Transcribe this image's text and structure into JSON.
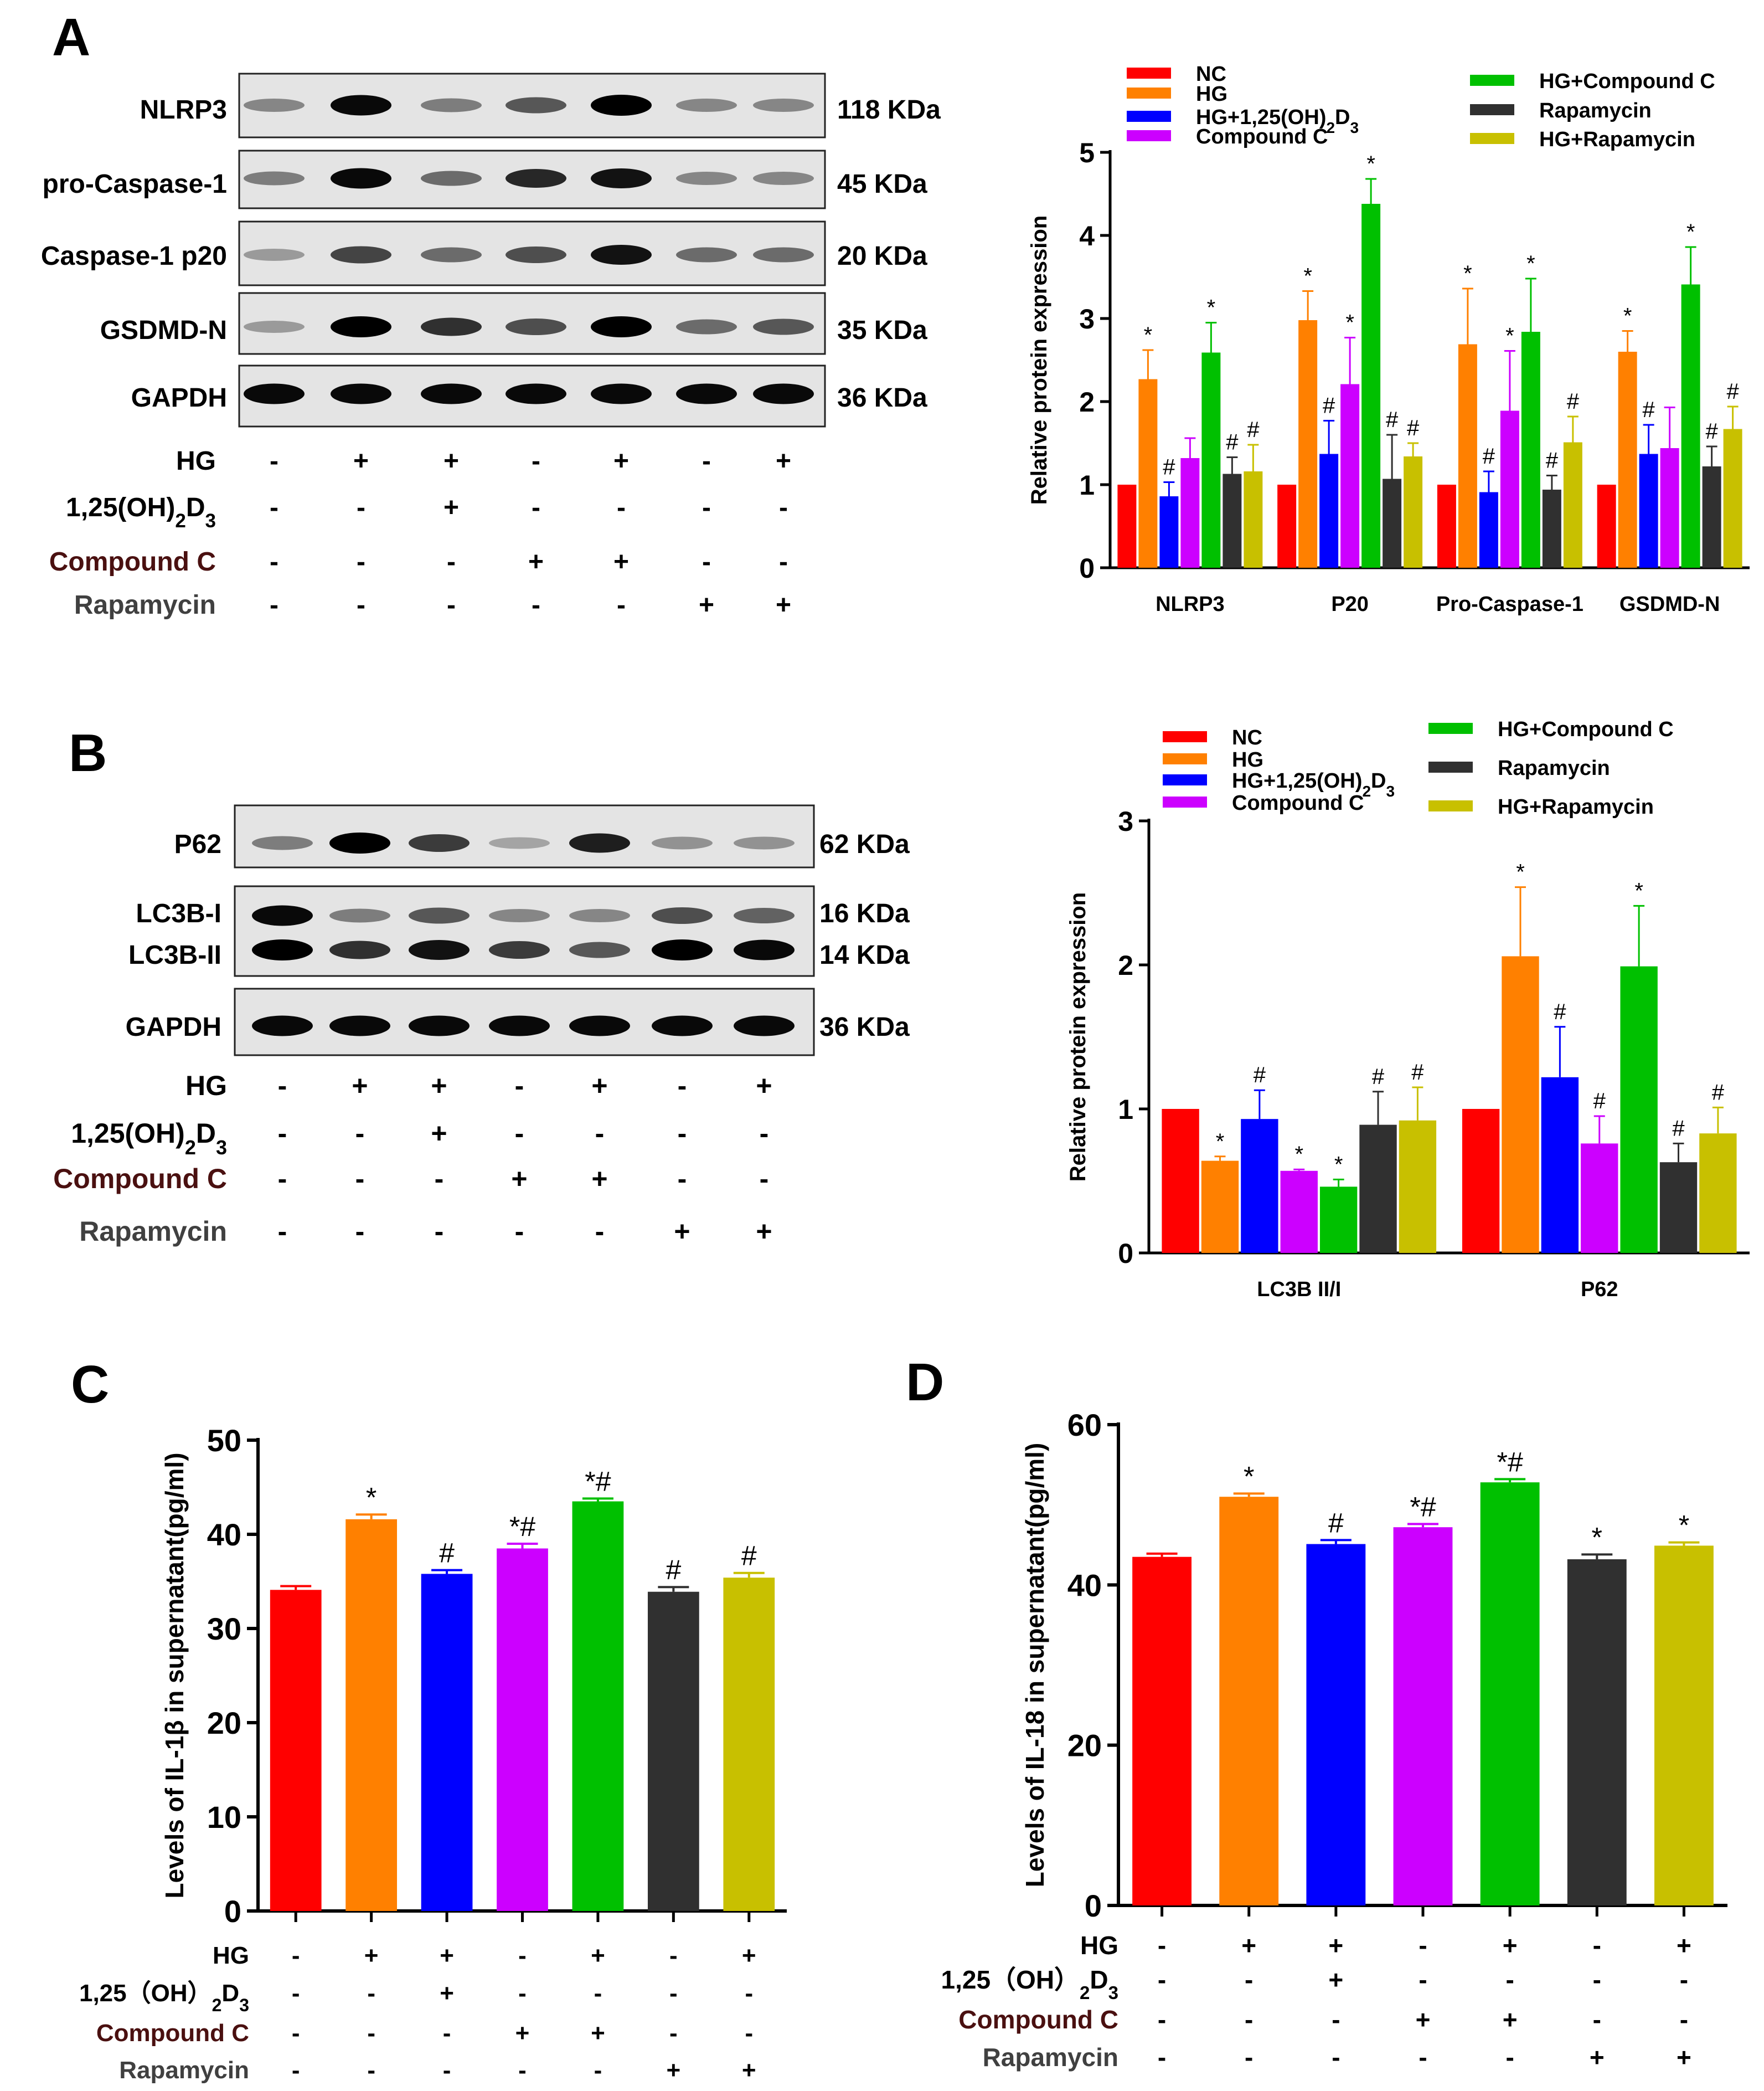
{
  "colors": {
    "NC": "#ff0000",
    "HG": "#ff8000",
    "HG+1,25(OH)2D3": "#0000ff",
    "Compound C": "#cc00ff",
    "HG+Compound C": "#00c000",
    "Rapamycin": "#303030",
    "HG+Rapamycin": "#c8c000",
    "treatmentCompoundC": "#4a1010",
    "treatmentRapamycin": "#404040"
  },
  "treatment_rows": {
    "HG": [
      "-",
      "+",
      "+",
      "-",
      "+",
      "-",
      "+"
    ],
    "VD3": [
      "-",
      "-",
      "+",
      "-",
      "-",
      "-",
      "-"
    ],
    "CompoundC": [
      "-",
      "-",
      "-",
      "+",
      "+",
      "-",
      "-"
    ],
    "Rapamycin": [
      "-",
      "-",
      "-",
      "-",
      "-",
      "+",
      "+"
    ]
  },
  "labels": {
    "HG": "HG",
    "VD3_prefix": "1,25(OH)",
    "VD3_sub": "2",
    "VD3_D": "D",
    "VD3_sub3": "3",
    "VD3_prefix_wide": "1,25（OH）",
    "VD3_D_wide": "D",
    "CompoundC": "Compound C",
    "Rapamycin": "Rapamycin"
  },
  "panelA": {
    "letter": "A",
    "blot_rows": [
      {
        "protein": "NLRP3",
        "size": "118 KDa",
        "intensities": [
          0.3,
          0.95,
          0.35,
          0.55,
          1.0,
          0.3,
          0.3
        ]
      },
      {
        "protein": "pro-Caspase-1",
        "size": "45 KDa",
        "intensities": [
          0.35,
          0.95,
          0.45,
          0.8,
          0.9,
          0.3,
          0.3
        ]
      },
      {
        "protein": "Caspase-1 p20",
        "size": "20 KDa",
        "intensities": [
          0.2,
          0.65,
          0.45,
          0.6,
          0.9,
          0.45,
          0.45
        ]
      },
      {
        "protein": "GSDMD-N",
        "size": "35 KDa",
        "intensities": [
          0.2,
          1.0,
          0.75,
          0.6,
          1.0,
          0.45,
          0.55
        ]
      },
      {
        "protein": "GAPDH",
        "size": "36 KDa",
        "intensities": [
          0.95,
          0.95,
          0.95,
          0.95,
          0.95,
          0.95,
          0.95
        ]
      }
    ]
  },
  "panelB": {
    "letter": "B",
    "blot_rows": [
      {
        "protein": "P62",
        "size": "62 KDa",
        "intensities": [
          0.35,
          1.0,
          0.7,
          0.15,
          0.85,
          0.25,
          0.25
        ]
      },
      {
        "protein": "LC3B-I",
        "size": "16 KDa",
        "intensities": [
          0.95,
          0.35,
          0.55,
          0.3,
          0.3,
          0.6,
          0.5
        ]
      },
      {
        "protein": "LC3B-II",
        "size": "14 KDa",
        "intensities": [
          1.0,
          0.75,
          0.9,
          0.7,
          0.55,
          1.0,
          0.95
        ]
      },
      {
        "protein": "GAPDH",
        "size": "36 KDa",
        "intensities": [
          0.95,
          0.95,
          0.95,
          0.95,
          0.95,
          0.95,
          0.95
        ]
      }
    ]
  },
  "panelC": {
    "letter": "C"
  },
  "panelD": {
    "letter": "D"
  },
  "chart_data": [
    {
      "id": "A",
      "type": "bar",
      "ylabel": "Relative protein expression",
      "ylim": [
        0,
        5
      ],
      "yticks": [
        0,
        1,
        2,
        3,
        4,
        5
      ],
      "categories": [
        "NLRP3",
        "P20",
        "Pro-Caspase-1",
        "GSDMD-N"
      ],
      "legend": [
        "NC",
        "HG",
        "HG+1,25(OH)2D3",
        "Compound C",
        "HG+Compound C",
        "Rapamycin",
        "HG+Rapamycin"
      ],
      "series": [
        {
          "name": "NC",
          "values": [
            1,
            1,
            1,
            1
          ],
          "errors": [
            0,
            0,
            0,
            0
          ],
          "marks": [
            "",
            "",
            "",
            ""
          ]
        },
        {
          "name": "HG",
          "values": [
            2.27,
            2.98,
            2.69,
            2.6
          ],
          "errors": [
            0.35,
            0.35,
            0.67,
            0.25
          ],
          "marks": [
            "*",
            "*",
            "*",
            "*"
          ]
        },
        {
          "name": "HG+1,25(OH)2D3",
          "values": [
            0.86,
            1.37,
            0.91,
            1.37
          ],
          "errors": [
            0.17,
            0.4,
            0.25,
            0.35
          ],
          "marks": [
            "#",
            "#",
            "#",
            "#"
          ]
        },
        {
          "name": "Compound C",
          "values": [
            1.32,
            2.21,
            1.89,
            1.44
          ],
          "errors": [
            0.24,
            0.56,
            0.72,
            0.49
          ],
          "marks": [
            "",
            "*",
            "*",
            ""
          ]
        },
        {
          "name": "HG+Compound C",
          "values": [
            2.59,
            4.38,
            2.84,
            3.41
          ],
          "errors": [
            0.36,
            0.3,
            0.64,
            0.45
          ],
          "marks": [
            "*",
            "*",
            "*",
            "*"
          ]
        },
        {
          "name": "Rapamycin",
          "values": [
            1.13,
            1.07,
            0.94,
            1.22
          ],
          "errors": [
            0.2,
            0.53,
            0.17,
            0.24
          ],
          "marks": [
            "#",
            "#",
            "#",
            "#"
          ]
        },
        {
          "name": "HG+Rapamycin",
          "values": [
            1.16,
            1.34,
            1.51,
            1.67
          ],
          "errors": [
            0.32,
            0.16,
            0.31,
            0.27
          ],
          "marks": [
            "#",
            "#",
            "#",
            "#"
          ]
        }
      ]
    },
    {
      "id": "B",
      "type": "bar",
      "ylabel": "Relative protein expression",
      "ylim": [
        0,
        3
      ],
      "yticks": [
        0,
        1,
        2,
        3
      ],
      "categories": [
        "LC3B II/I",
        "P62"
      ],
      "legend": [
        "NC",
        "HG",
        "HG+1,25(OH)2D3",
        "Compound C",
        "HG+Compound C",
        "Rapamycin",
        "HG+Rapamycin"
      ],
      "series": [
        {
          "name": "NC",
          "values": [
            1,
            1
          ],
          "errors": [
            0,
            0
          ],
          "marks": [
            "",
            ""
          ]
        },
        {
          "name": "HG",
          "values": [
            0.64,
            2.06
          ],
          "errors": [
            0.03,
            0.48
          ],
          "marks": [
            "*",
            "*"
          ]
        },
        {
          "name": "HG+1,25(OH)2D3",
          "values": [
            0.93,
            1.22
          ],
          "errors": [
            0.2,
            0.35
          ],
          "marks": [
            "#",
            "#"
          ]
        },
        {
          "name": "Compound C",
          "values": [
            0.57,
            0.76
          ],
          "errors": [
            0.01,
            0.19
          ],
          "marks": [
            "*",
            "#"
          ]
        },
        {
          "name": "HG+Compound C",
          "values": [
            0.46,
            1.99
          ],
          "errors": [
            0.05,
            0.42
          ],
          "marks": [
            "*",
            "*"
          ]
        },
        {
          "name": "Rapamycin",
          "values": [
            0.89,
            0.63
          ],
          "errors": [
            0.23,
            0.13
          ],
          "marks": [
            "#",
            "#"
          ]
        },
        {
          "name": "HG+Rapamycin",
          "values": [
            0.92,
            0.83
          ],
          "errors": [
            0.23,
            0.18
          ],
          "marks": [
            "#",
            "#"
          ]
        }
      ]
    },
    {
      "id": "C",
      "type": "bar",
      "ylabel": "Levels of IL-1β in supernatant(pg/ml)",
      "ylim": [
        0,
        50
      ],
      "yticks": [
        0,
        10,
        20,
        30,
        40,
        50
      ],
      "categories": [
        "NC",
        "HG",
        "HG+1,25(OH)2D3",
        "Compound C",
        "HG+Compound C",
        "Rapamycin",
        "HG+Rapamycin"
      ],
      "values": [
        34.1,
        41.6,
        35.8,
        38.5,
        43.5,
        33.9,
        35.4
      ],
      "errors": [
        0.4,
        0.5,
        0.4,
        0.5,
        0.3,
        0.5,
        0.5
      ],
      "marks": [
        "",
        "*",
        "#",
        "*#",
        "*#",
        "#",
        "#"
      ]
    },
    {
      "id": "D",
      "type": "bar",
      "ylabel": "Levels of IL-18 in supernatant(pg/ml)",
      "ylim": [
        0,
        60
      ],
      "yticks": [
        0,
        20,
        40,
        60
      ],
      "categories": [
        "NC",
        "HG",
        "HG+1,25(OH)2D3",
        "Compound C",
        "HG+Compound C",
        "Rapamycin",
        "HG+Rapamycin"
      ],
      "values": [
        43.5,
        51.0,
        45.1,
        47.2,
        52.8,
        43.2,
        44.9
      ],
      "errors": [
        0.4,
        0.4,
        0.5,
        0.4,
        0.4,
        0.6,
        0.4
      ],
      "marks": [
        "",
        "*",
        "#",
        "*#",
        "*#",
        "*",
        "*"
      ]
    }
  ]
}
